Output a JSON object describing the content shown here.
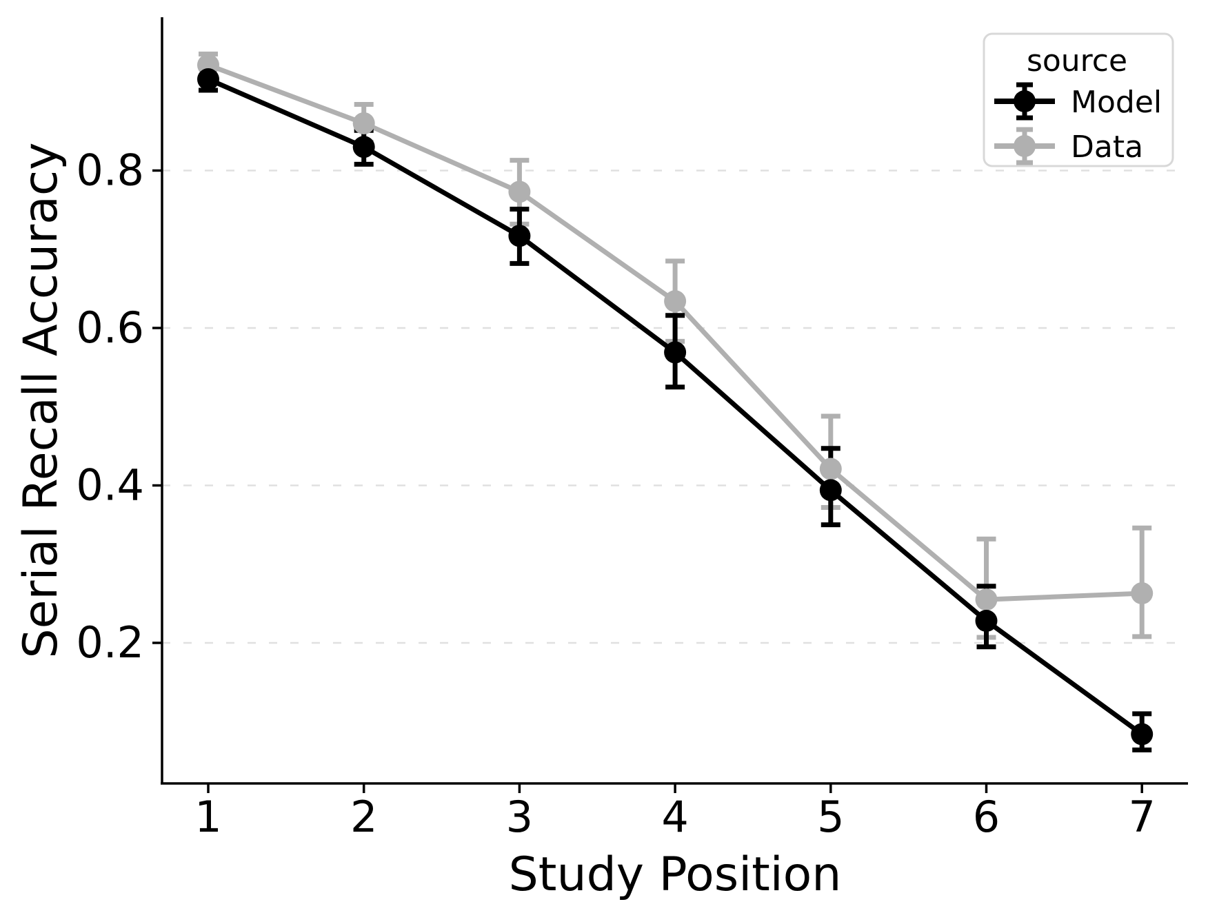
{
  "figure": {
    "background": "#ffffff"
  },
  "legend": {
    "title": "source",
    "items": [
      {
        "label": "Model",
        "color": "#000000"
      },
      {
        "label": "Data",
        "color": "#b0b0b0"
      }
    ]
  },
  "chart_data": {
    "type": "line",
    "title": "",
    "xlabel": "Study Position",
    "ylabel": "Serial Recall Accuracy",
    "x": [
      1,
      2,
      3,
      4,
      5,
      6,
      7
    ],
    "x_tick_labels": [
      "1",
      "2",
      "3",
      "4",
      "5",
      "6",
      "7"
    ],
    "y_ticks": [
      0.2,
      0.4,
      0.6,
      0.8
    ],
    "y_tick_labels": [
      "0.2",
      "0.4",
      "0.6",
      "0.8"
    ],
    "xlim": [
      0.7,
      7.3
    ],
    "ylim": [
      0.02,
      1.0
    ],
    "grid": "horizontal-dashed",
    "grid_color": "#e0e0e0",
    "legend_position": "upper right",
    "series": [
      {
        "name": "Model",
        "color": "#000000",
        "values": [
          0.916,
          0.83,
          0.717,
          0.569,
          0.394,
          0.228,
          0.084
        ],
        "err_lo": [
          0.902,
          0.808,
          0.682,
          0.525,
          0.35,
          0.195,
          0.064
        ],
        "err_hi": [
          0.931,
          0.851,
          0.751,
          0.616,
          0.447,
          0.272,
          0.11
        ]
      },
      {
        "name": "Data",
        "color": "#b0b0b0",
        "values": [
          0.934,
          0.86,
          0.773,
          0.634,
          0.421,
          0.255,
          0.263
        ],
        "err_lo": [
          0.92,
          0.836,
          0.732,
          0.583,
          0.372,
          0.207,
          0.208
        ],
        "err_hi": [
          0.948,
          0.884,
          0.813,
          0.685,
          0.488,
          0.332,
          0.346
        ]
      }
    ]
  }
}
